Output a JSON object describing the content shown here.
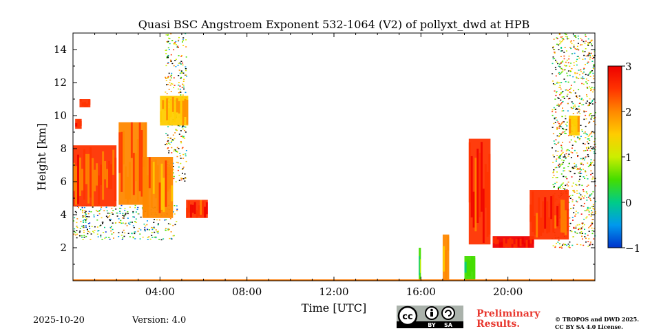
{
  "chart_data": {
    "type": "heatmap",
    "title": "Quasi BSC Angstroem Exponent 532-1064 (V2) of pollyxt_dwd at HPB",
    "xlabel": "Time [UTC]",
    "ylabel": "Height [km]",
    "xlim_hours": [
      0,
      24
    ],
    "ylim_km": [
      0,
      15
    ],
    "x_ticks": [
      {
        "value": 4,
        "label": "04:00"
      },
      {
        "value": 8,
        "label": "08:00"
      },
      {
        "value": 12,
        "label": "12:00"
      },
      {
        "value": 16,
        "label": "16:00"
      },
      {
        "value": 20,
        "label": "20:00"
      }
    ],
    "y_ticks": [
      {
        "value": 2,
        "label": "2"
      },
      {
        "value": 4,
        "label": "4"
      },
      {
        "value": 6,
        "label": "6"
      },
      {
        "value": 8,
        "label": "8"
      },
      {
        "value": 10,
        "label": "10"
      },
      {
        "value": 12,
        "label": "12"
      },
      {
        "value": 14,
        "label": "14"
      }
    ],
    "colorbar": {
      "range": [
        -1,
        3
      ],
      "ticks": [
        {
          "value": 3,
          "label": "3"
        },
        {
          "value": 2,
          "label": "2"
        },
        {
          "value": 1,
          "label": "1"
        },
        {
          "value": 0,
          "label": "0"
        },
        {
          "value": -1,
          "label": "−1"
        }
      ],
      "colors": [
        "#0033cc",
        "#0099ee",
        "#00cc88",
        "#44dd00",
        "#ccee00",
        "#ffcc00",
        "#ff8800",
        "#ff3300",
        "#ee0000"
      ]
    },
    "regions": [
      {
        "t0": 0.0,
        "t1": 2.0,
        "h0": 4.5,
        "h1": 8.2,
        "value": 2.3
      },
      {
        "t0": 0.1,
        "t1": 0.4,
        "h0": 9.2,
        "h1": 9.8,
        "value": 2.4
      },
      {
        "t0": 0.3,
        "t1": 0.8,
        "h0": 10.5,
        "h1": 11.0,
        "value": 2.3
      },
      {
        "t0": 2.1,
        "t1": 3.4,
        "h0": 4.6,
        "h1": 9.6,
        "value": 2.2
      },
      {
        "t0": 3.2,
        "t1": 4.6,
        "h0": 3.8,
        "h1": 7.5,
        "value": 1.9
      },
      {
        "t0": 4.0,
        "t1": 5.3,
        "h0": 9.4,
        "h1": 11.2,
        "value": 1.6
      },
      {
        "t0": 5.2,
        "t1": 6.2,
        "h0": 3.8,
        "h1": 4.9,
        "value": 2.5
      },
      {
        "t0": 18.2,
        "t1": 19.2,
        "h0": 2.2,
        "h1": 8.6,
        "value": 2.5
      },
      {
        "t0": 19.3,
        "t1": 21.2,
        "h0": 2.0,
        "h1": 2.7,
        "value": 2.8
      },
      {
        "t0": 21.0,
        "t1": 22.8,
        "h0": 2.5,
        "h1": 5.5,
        "value": 2.4
      },
      {
        "t0": 22.8,
        "t1": 23.3,
        "h0": 8.8,
        "h1": 10.0,
        "value": 1.6
      },
      {
        "t0": 15.9,
        "t1": 16.0,
        "h0": 0.0,
        "h1": 2.0,
        "value": 0.6
      },
      {
        "t0": 17.0,
        "t1": 17.3,
        "h0": 0.0,
        "h1": 2.8,
        "value": 2.2
      },
      {
        "t0": 18.0,
        "t1": 18.5,
        "h0": 0.0,
        "h1": 1.5,
        "value": 0.3
      }
    ],
    "noise_regions": [
      {
        "t0": 0.0,
        "t1": 4.8,
        "h0": 2.5,
        "h1": 4.6,
        "value": 0.6
      },
      {
        "t0": 4.2,
        "t1": 5.2,
        "h0": 6.0,
        "h1": 15.0,
        "value": 1.2
      },
      {
        "t0": 22.0,
        "t1": 24.0,
        "h0": 2.0,
        "h1": 15.0,
        "value": 1.3
      }
    ]
  },
  "footer": {
    "date": "2025-10-20",
    "version": "Version: 4.0",
    "preliminary_line1": "Preliminary",
    "preliminary_line2": "Results.",
    "copyright_line1": "© TROPOS and DWD 2025.",
    "copyright_line2": "CC BY SA 4.0 License.",
    "badge_cc": "cc",
    "badge_by": "BY",
    "badge_sa": "SA"
  }
}
